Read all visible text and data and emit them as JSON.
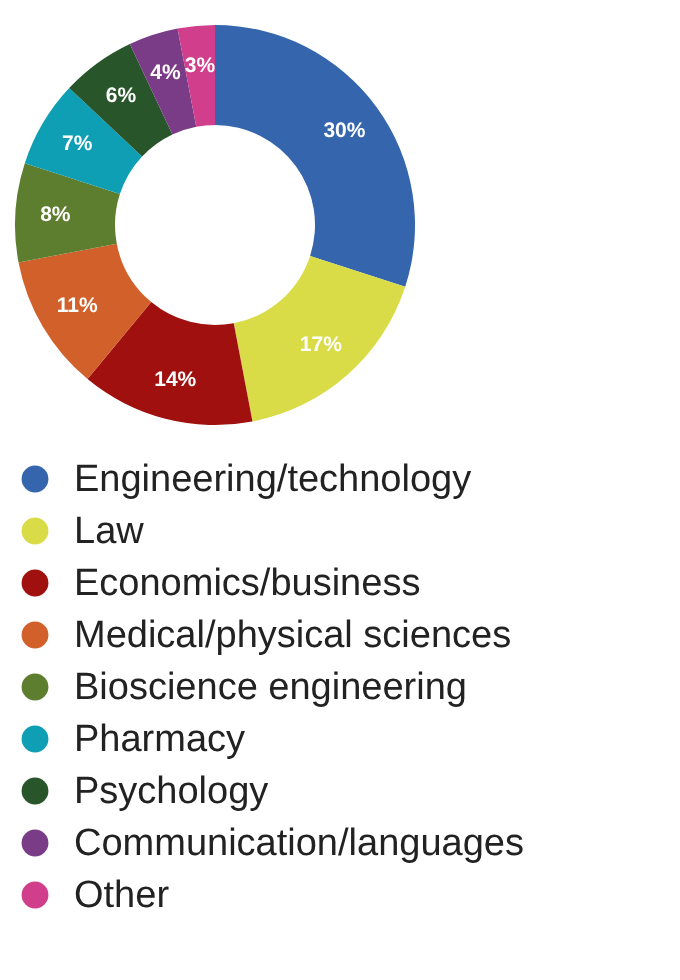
{
  "chart_data": {
    "type": "donut",
    "categories": [
      "Engineering/technology",
      "Law",
      "Economics/business",
      "Medical/physical sciences",
      "Bioscience engineering",
      "Pharmacy",
      "Psychology",
      "Communication/languages",
      "Other"
    ],
    "values": [
      30,
      17,
      14,
      11,
      8,
      7,
      6,
      4,
      3
    ],
    "colors": [
      "#3566ad",
      "#d9dc47",
      "#a0100f",
      "#d2602a",
      "#5e7e2f",
      "#0e9fb5",
      "#28552a",
      "#7a3c87",
      "#d03e8c"
    ],
    "value_labels": [
      "30%",
      "17%",
      "14%",
      "11%",
      "8%",
      "7%",
      "6%",
      "4%",
      "3%"
    ],
    "legend": "bottom"
  }
}
